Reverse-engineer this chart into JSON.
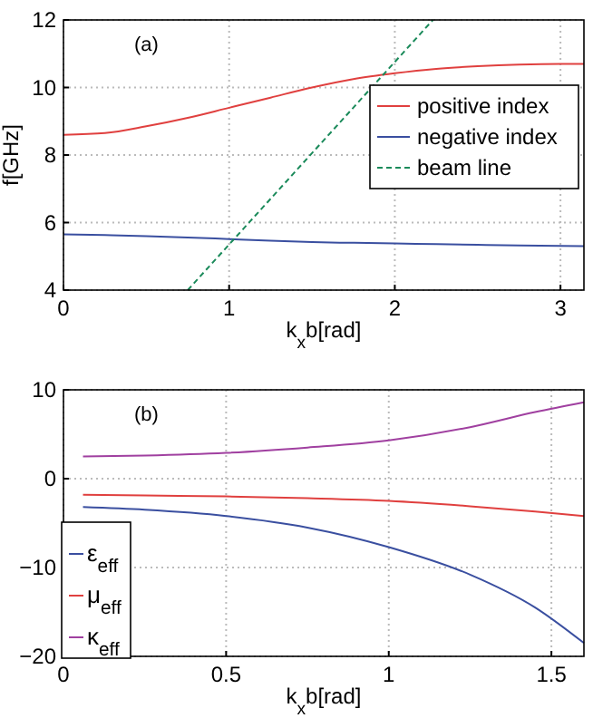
{
  "chart_data": [
    {
      "type": "line",
      "xlabel": "k$_{x}$b[rad]",
      "ylabel": "f[GHz]",
      "annotations": [
        "(a)"
      ],
      "xlim": [
        0,
        3.1416
      ],
      "xticks": [
        0,
        1,
        2,
        3
      ],
      "ylim": [
        4,
        12
      ],
      "yticks": [
        4,
        6,
        8,
        10,
        12
      ],
      "grid": true,
      "legend": "right",
      "line_style": "solid",
      "marker": "none",
      "x": [
        0,
        0.25,
        0.5,
        0.75,
        1,
        1.25,
        1.5,
        1.75,
        2,
        2.25,
        2.5,
        2.75,
        3,
        3.1416
      ],
      "series": [
        {
          "name": "positive index",
          "color": "#e0403f",
          "values": [
            8.6,
            8.65,
            8.85,
            9.1,
            9.4,
            9.7,
            10.0,
            10.25,
            10.42,
            10.55,
            10.63,
            10.68,
            10.7,
            10.7
          ]
        },
        {
          "name": "negative index",
          "color": "#3a4fa0",
          "values": [
            5.65,
            5.63,
            5.6,
            5.56,
            5.51,
            5.46,
            5.42,
            5.4,
            5.38,
            5.36,
            5.34,
            5.32,
            5.31,
            5.3
          ]
        },
        {
          "name": "beam line",
          "color": "#1a8a5a",
          "line_style": "dashed",
          "x": [
            0.75,
            2.23
          ],
          "values": [
            4,
            12
          ]
        }
      ]
    },
    {
      "type": "line",
      "xlabel": "k$_{x}$b[rad]",
      "annotations": [
        "(b)"
      ],
      "xlim": [
        0,
        1.6
      ],
      "xticks": [
        0,
        0.5,
        1,
        1.5
      ],
      "ylim": [
        -20,
        10
      ],
      "yticks": [
        -20,
        -10,
        0,
        10
      ],
      "grid": true,
      "legend": "bottom left",
      "line_style": "solid",
      "marker": "none",
      "x": [
        0.06,
        0.25,
        0.5,
        0.75,
        1,
        1.25,
        1.45,
        1.6
      ],
      "series": [
        {
          "name": "ε$_{eff}$",
          "color": "#3a4fa0",
          "values": [
            -3.2,
            -3.5,
            -4.2,
            -5.5,
            -7.7,
            -10.8,
            -14.5,
            -18.5
          ]
        },
        {
          "name": "μ$_{eff}$",
          "color": "#e0403f",
          "values": [
            -1.8,
            -1.9,
            -2.0,
            -2.2,
            -2.5,
            -3.1,
            -3.7,
            -4.2
          ]
        },
        {
          "name": "κ$_{eff}$",
          "color": "#a040a0",
          "values": [
            2.5,
            2.6,
            2.9,
            3.5,
            4.3,
            5.8,
            7.5,
            8.6
          ]
        }
      ]
    }
  ]
}
